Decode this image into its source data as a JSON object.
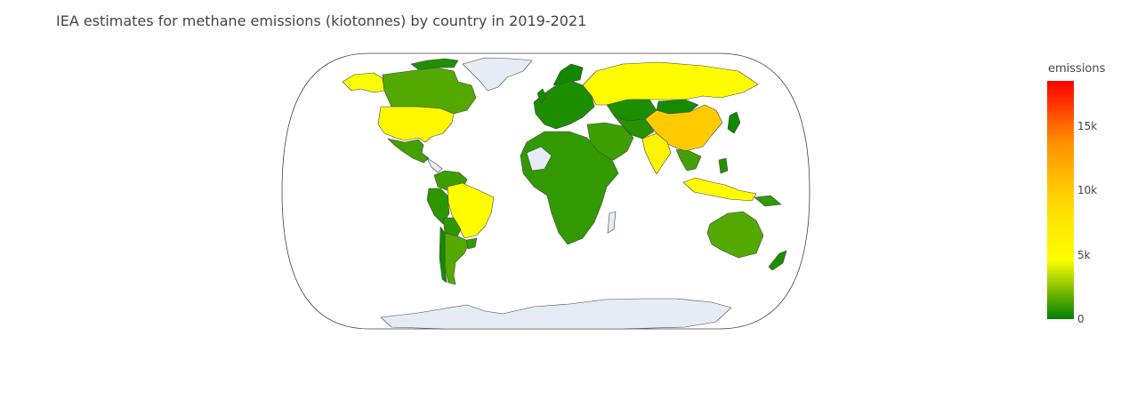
{
  "title": "IEA estimates for methane emissions (kiotonnes) by country in 2019-2021",
  "colorbar": {
    "title": "emissions",
    "min": 0,
    "max": 18500,
    "ticks": [
      {
        "value": 0,
        "label": "0"
      },
      {
        "value": 5000,
        "label": "5k"
      },
      {
        "value": 10000,
        "label": "10k"
      },
      {
        "value": 15000,
        "label": "15k"
      }
    ],
    "colorscale": [
      {
        "stop": 0.0,
        "color": "#008000"
      },
      {
        "stop": 0.25,
        "color": "#ffff00"
      },
      {
        "stop": 0.5,
        "color": "#ffd700"
      },
      {
        "stop": 0.75,
        "color": "#ff8c00"
      },
      {
        "stop": 1.0,
        "color": "#ff0000"
      }
    ]
  },
  "chart_data": {
    "type": "choropleth",
    "projection": "natural earth",
    "nodata_color": "#e5ecf6",
    "approximate_emissions": [
      {
        "country": "China",
        "value": 10000
      },
      {
        "country": "Russia",
        "value": 5000
      },
      {
        "country": "United States",
        "value": 5500
      },
      {
        "country": "India",
        "value": 6000
      },
      {
        "country": "Brazil",
        "value": 4800
      },
      {
        "country": "Indonesia",
        "value": 5000
      },
      {
        "country": "Canada",
        "value": 1500
      },
      {
        "country": "Australia",
        "value": 1500
      },
      {
        "country": "Argentina",
        "value": 1500
      },
      {
        "country": "Mexico",
        "value": 1200
      },
      {
        "country": "Kazakhstan",
        "value": 500
      },
      {
        "country": "Mongolia",
        "value": 400
      }
    ]
  }
}
